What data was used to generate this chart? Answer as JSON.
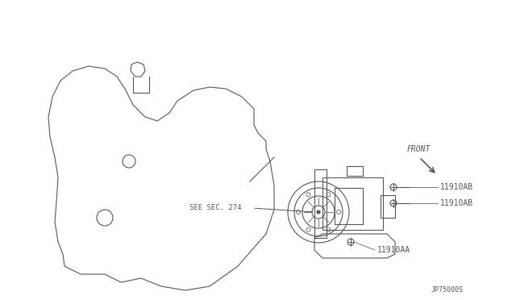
{
  "bg_color": "#ffffff",
  "line_color": "#555555",
  "text_color": "#555555",
  "title": "",
  "diagram_id": "JP75000S",
  "labels": {
    "front": "FRONT",
    "see_sec": "SEE SEC. 274",
    "part1": "11910AB",
    "part2": "11910AB",
    "part3": "11910AA"
  },
  "fig_width": 6.4,
  "fig_height": 3.72,
  "dpi": 100
}
